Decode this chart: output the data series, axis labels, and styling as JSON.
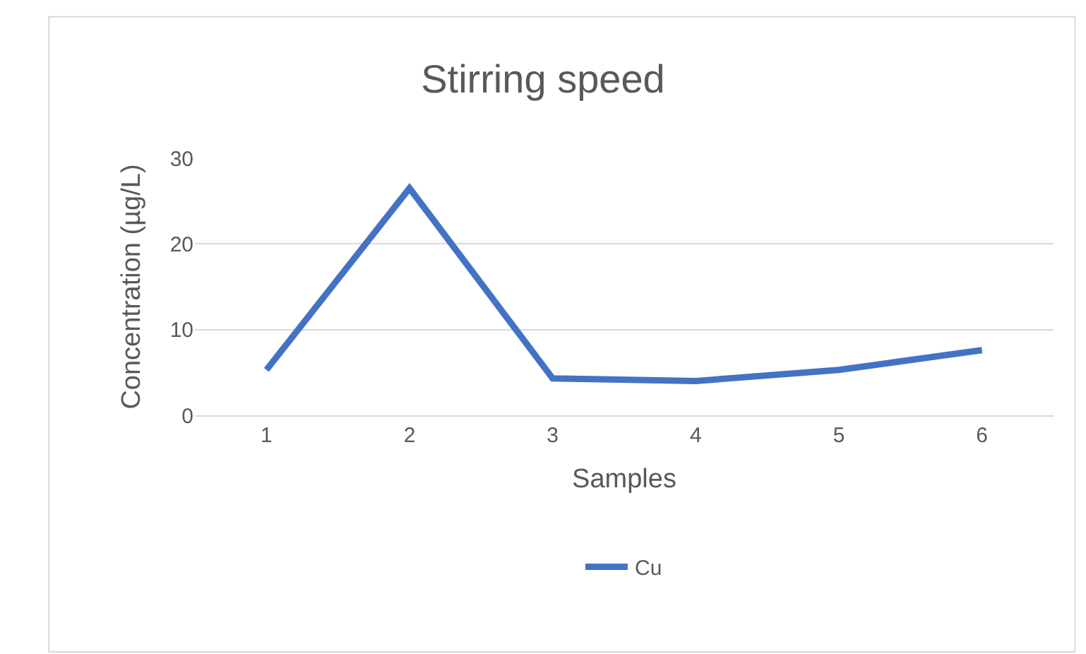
{
  "chart_data": {
    "type": "line",
    "title": "Stirring speed",
    "xlabel": "Samples",
    "ylabel": "Concentration (µg/L)",
    "categories": [
      "1",
      "2",
      "3",
      "4",
      "5",
      "6"
    ],
    "series": [
      {
        "name": "Cu",
        "color": "#4472c4",
        "values": [
          5.3,
          26.5,
          4.3,
          4.0,
          5.3,
          7.6
        ]
      }
    ],
    "ylim": [
      0,
      30
    ],
    "yticks": [
      0,
      10,
      20,
      30
    ],
    "grid": "y",
    "legend": "bottom",
    "marker": "none",
    "line_style": "solid"
  }
}
